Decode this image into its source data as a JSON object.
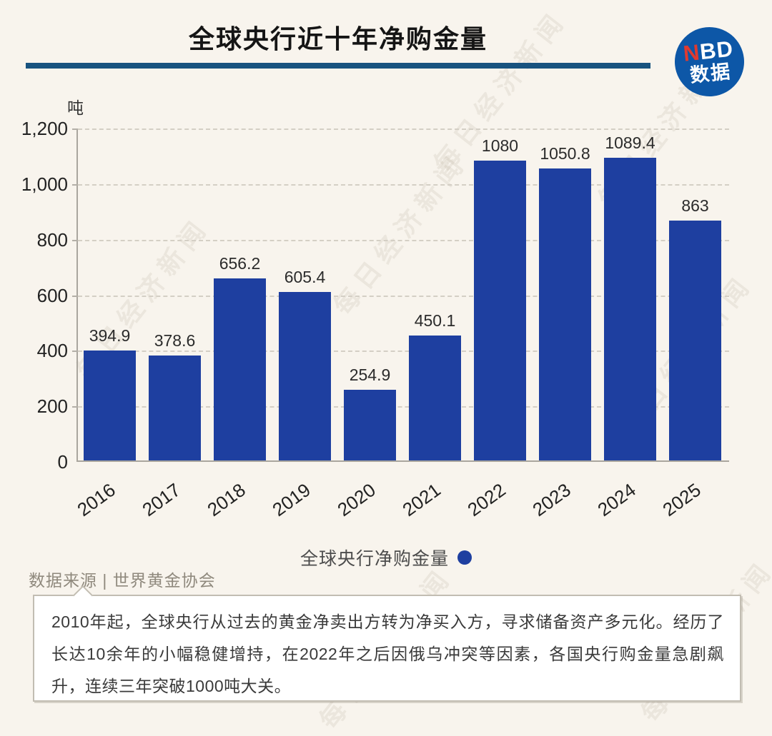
{
  "header": {
    "title": "全球央行近十年净购金量"
  },
  "logo": {
    "line1_red": "N",
    "line1_white": "BD",
    "line2": "数据"
  },
  "chart_data": {
    "type": "bar",
    "title": "全球央行近十年净购金量",
    "unit": "吨",
    "categories": [
      "2016",
      "2017",
      "2018",
      "2019",
      "2020",
      "2021",
      "2022",
      "2023",
      "2024",
      "2025"
    ],
    "values": [
      394.9,
      378.6,
      656.2,
      605.4,
      254.9,
      450.1,
      1080,
      1050.8,
      1089.4,
      863
    ],
    "value_labels": [
      "394.9",
      "378.6",
      "656.2",
      "605.4",
      "254.9",
      "450.1",
      "1080",
      "1050.8",
      "1089.4",
      "863"
    ],
    "xlabel": "",
    "ylabel": "吨",
    "ylim": [
      0,
      1200
    ],
    "yticks": [
      {
        "value": 0,
        "label": "0"
      },
      {
        "value": 200,
        "label": "200"
      },
      {
        "value": 400,
        "label": "400"
      },
      {
        "value": 600,
        "label": "600"
      },
      {
        "value": 800,
        "label": "800"
      },
      {
        "value": 1000,
        "label": "1,000"
      },
      {
        "value": 1200,
        "label": "1,200"
      }
    ],
    "grid": "horizontal-dashed",
    "legend_position": "bottom",
    "bar_color": "#1e3fa0"
  },
  "legend": {
    "label": "全球央行净购金量"
  },
  "source": {
    "text": "数据来源 | 世界黄金协会"
  },
  "note": {
    "text": "2010年起，全球央行从过去的黄金净卖出方转为净买入方，寻求储备资产多元化。经历了长达10余年的小幅稳健增持，在2022年之后因俄乌冲突等因素，各国央行购金量急剧飙升，连续三年突破1000吨大关。"
  },
  "watermark": {
    "text": "每日经济新闻"
  },
  "colors": {
    "background": "#f8f4ed",
    "bar": "#1e3fa0",
    "title_rule": "#18537f",
    "logo_circle": "#0d57a7",
    "logo_red": "#e03a2f"
  }
}
